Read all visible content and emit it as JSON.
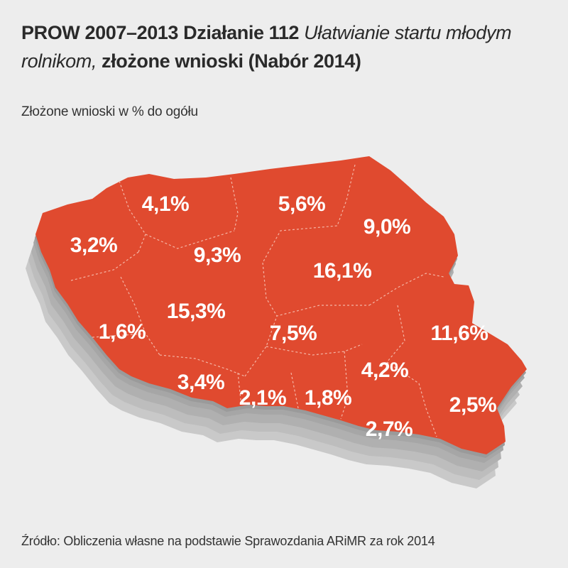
{
  "title": {
    "part1": "PROW 2007–2013 Działanie 112 ",
    "part2": "Ułatwianie startu młodym rolnikom,",
    "part3": " złożone wnioski (Nabór 2014)"
  },
  "subtitle": "Złożone wnioski w % do ogółu",
  "source": "Źródło: Obliczenia własne na podstawie Sprawozdania ARiMR za rok 2014",
  "colors": {
    "region_fill": "#e04a2f",
    "shadow": "#b5b5b5",
    "background": "#ededed",
    "label": "#ffffff"
  },
  "regions": [
    {
      "value": "4,1%"
    },
    {
      "value": "5,6%"
    },
    {
      "value": "9,0%"
    },
    {
      "value": "3,2%"
    },
    {
      "value": "9,3%"
    },
    {
      "value": "16,1%"
    },
    {
      "value": "15,3%"
    },
    {
      "value": "1,6%"
    },
    {
      "value": "7,5%"
    },
    {
      "value": "11,6%"
    },
    {
      "value": "4,2%"
    },
    {
      "value": "3,4%"
    },
    {
      "value": "2,1%"
    },
    {
      "value": "1,8%"
    },
    {
      "value": "2,5%"
    },
    {
      "value": "2,7%"
    }
  ]
}
